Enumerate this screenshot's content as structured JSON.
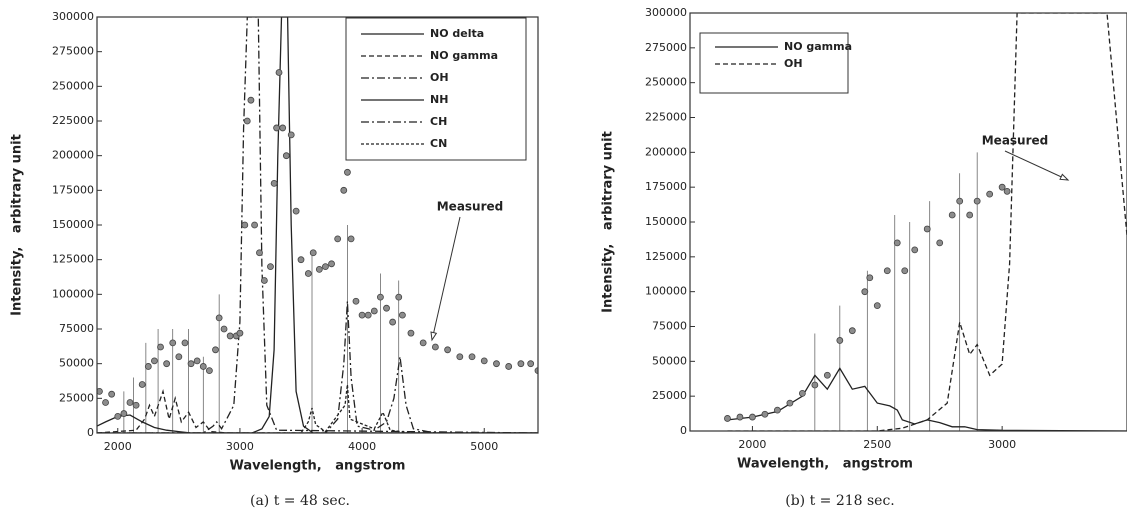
{
  "chart_data": [
    {
      "type": "line",
      "caption": "(a) t = 48 sec.",
      "xlabel": "Wavelength,   angstrom",
      "ylabel": "Intensity,   arbitrary unit",
      "xlim": [
        1830,
        5440
      ],
      "ylim": [
        0,
        300000
      ],
      "xticks": [
        2000,
        3000,
        4000,
        5000
      ],
      "yticks": [
        0,
        25000,
        50000,
        75000,
        100000,
        125000,
        150000,
        175000,
        200000,
        225000,
        250000,
        275000,
        300000
      ],
      "legend": "upper right",
      "series": [
        {
          "name": "NO delta",
          "color": "#222222",
          "dash": "none",
          "x": [
            1830,
            1900,
            2000,
            2100,
            2200,
            2300,
            2400,
            2500,
            2600,
            2800,
            5440
          ],
          "values": [
            5000,
            8000,
            12000,
            13000,
            8000,
            4000,
            2000,
            1000,
            0,
            0,
            0
          ]
        },
        {
          "name": "NO gamma",
          "color": "#222222",
          "dash": "5 3",
          "x": [
            1830,
            2150,
            2220,
            2260,
            2300,
            2370,
            2420,
            2470,
            2520,
            2580,
            2640,
            2700,
            2760,
            2900,
            5440
          ],
          "values": [
            0,
            2000,
            10000,
            20000,
            12000,
            30000,
            10000,
            25000,
            8000,
            15000,
            4000,
            8000,
            1000,
            0,
            0
          ]
        },
        {
          "name": "OH",
          "color": "#222222",
          "dash": "8 3 2 3",
          "x": [
            1830,
            2700,
            2780,
            2810,
            2850,
            2950,
            3000,
            3030,
            3060,
            3090,
            3120,
            3150,
            3180,
            3220,
            3300,
            5440
          ],
          "values": [
            0,
            0,
            5000,
            8000,
            3000,
            20000,
            80000,
            220000,
            300000,
            300000,
            300000,
            300000,
            120000,
            20000,
            2000,
            0
          ]
        },
        {
          "name": "NH",
          "color": "#222222",
          "dash": "none",
          "x": [
            1830,
            3100,
            3180,
            3240,
            3280,
            3310,
            3340,
            3360,
            3390,
            3420,
            3460,
            3520,
            3600,
            5440
          ],
          "values": [
            0,
            0,
            3000,
            12000,
            60000,
            200000,
            300000,
            300000,
            300000,
            150000,
            30000,
            5000,
            0,
            0
          ]
        },
        {
          "name": "CH",
          "color": "#222222",
          "dash": "8 3 2 3",
          "x": [
            1830,
            3700,
            3800,
            3850,
            3880,
            3910,
            3960,
            4100,
            4200,
            4260,
            4310,
            4360,
            4420,
            4600,
            5440
          ],
          "values": [
            0,
            0,
            10000,
            50000,
            95000,
            40000,
            5000,
            2000,
            8000,
            25000,
            55000,
            20000,
            3000,
            0,
            0
          ]
        },
        {
          "name": "CN",
          "color": "#222222",
          "dash": "3 2",
          "x": [
            1830,
            3500,
            3560,
            3590,
            3620,
            3700,
            3860,
            3880,
            3900,
            4100,
            4170,
            4230,
            4400,
            5440
          ],
          "values": [
            0,
            0,
            8000,
            18000,
            6000,
            1000,
            20000,
            35000,
            10000,
            3000,
            15000,
            2000,
            0,
            0
          ]
        }
      ],
      "measured": {
        "name": "Measured",
        "color": "#8c8c8c",
        "x": [
          1850,
          1900,
          1950,
          2000,
          2050,
          2100,
          2150,
          2200,
          2250,
          2300,
          2350,
          2400,
          2450,
          2500,
          2550,
          2600,
          2650,
          2700,
          2750,
          2800,
          2830,
          2870,
          2920,
          2970,
          3000,
          3040,
          3060,
          3090,
          3120,
          3160,
          3200,
          3250,
          3280,
          3300,
          3320,
          3350,
          3380,
          3420,
          3460,
          3500,
          3560,
          3600,
          3650,
          3700,
          3750,
          3800,
          3850,
          3880,
          3910,
          3950,
          4000,
          4050,
          4100,
          4150,
          4200,
          4250,
          4300,
          4330,
          4400,
          4500,
          4600,
          4700,
          4800,
          4900,
          5000,
          5100,
          5200,
          5300,
          5380,
          5440
        ],
        "values": [
          30000,
          22000,
          28000,
          12000,
          14000,
          22000,
          20000,
          35000,
          48000,
          52000,
          62000,
          50000,
          65000,
          55000,
          65000,
          50000,
          52000,
          48000,
          45000,
          60000,
          83000,
          75000,
          70000,
          70000,
          72000,
          150000,
          225000,
          240000,
          150000,
          130000,
          110000,
          120000,
          180000,
          220000,
          260000,
          220000,
          200000,
          215000,
          160000,
          125000,
          115000,
          130000,
          118000,
          120000,
          122000,
          140000,
          175000,
          188000,
          140000,
          95000,
          85000,
          85000,
          88000,
          98000,
          90000,
          80000,
          98000,
          85000,
          72000,
          65000,
          62000,
          60000,
          55000,
          55000,
          52000,
          50000,
          48000,
          50000,
          50000,
          45000
        ]
      },
      "reference_lines": {
        "x": [
          2050,
          2130,
          2230,
          2330,
          2450,
          2580,
          2700,
          2830,
          3590,
          3880,
          4150,
          4300
        ],
        "values": [
          30000,
          40000,
          65000,
          75000,
          75000,
          75000,
          55000,
          100000,
          130000,
          150000,
          115000,
          110000
        ]
      }
    },
    {
      "type": "line",
      "caption": "(b) t = 218 sec.",
      "xlabel": "Wavelength,   angstrom",
      "ylabel": "Intensity,   arbitrary unit",
      "xlim": [
        1750,
        3500
      ],
      "ylim": [
        0,
        300000
      ],
      "xticks": [
        2000,
        2500,
        3000
      ],
      "yticks": [
        0,
        25000,
        50000,
        75000,
        100000,
        125000,
        150000,
        175000,
        200000,
        225000,
        250000,
        275000,
        300000
      ],
      "legend": "upper left",
      "series": [
        {
          "name": "NO gamma",
          "color": "#222222",
          "dash": "none",
          "x": [
            1900,
            2000,
            2100,
            2200,
            2250,
            2300,
            2350,
            2400,
            2450,
            2500,
            2550,
            2580,
            2600,
            2650,
            2700,
            2750,
            2800,
            2850,
            2900,
            3000,
            3500
          ],
          "values": [
            8000,
            10000,
            14000,
            25000,
            40000,
            30000,
            45000,
            30000,
            32000,
            20000,
            18000,
            15000,
            8000,
            5000,
            8000,
            6000,
            3000,
            3000,
            1000,
            500,
            0
          ]
        },
        {
          "name": "OH",
          "color": "#222222",
          "dash": "5 3",
          "x": [
            1900,
            2500,
            2600,
            2700,
            2780,
            2830,
            2870,
            2900,
            2950,
            3000,
            3030,
            3060,
            3420,
            3500
          ],
          "values": [
            0,
            0,
            2000,
            8000,
            20000,
            78000,
            55000,
            62000,
            40000,
            48000,
            120000,
            300000,
            300000,
            140000
          ]
        }
      ],
      "measured": {
        "name": "Measured",
        "color": "#8c8c8c",
        "x": [
          1900,
          1950,
          2000,
          2050,
          2100,
          2150,
          2200,
          2250,
          2300,
          2350,
          2400,
          2450,
          2470,
          2500,
          2540,
          2580,
          2610,
          2650,
          2700,
          2750,
          2800,
          2830,
          2870,
          2900,
          2950,
          3000,
          3020
        ],
        "values": [
          9000,
          10000,
          10000,
          12000,
          15000,
          20000,
          27000,
          33000,
          40000,
          65000,
          72000,
          100000,
          110000,
          90000,
          115000,
          135000,
          115000,
          130000,
          145000,
          135000,
          155000,
          165000,
          155000,
          165000,
          170000,
          175000,
          172000
        ]
      },
      "reference_lines": {
        "x": [
          2250,
          2350,
          2460,
          2570,
          2630,
          2710,
          2830,
          2900
        ],
        "values": [
          70000,
          90000,
          115000,
          155000,
          150000,
          165000,
          185000,
          200000
        ]
      }
    }
  ]
}
